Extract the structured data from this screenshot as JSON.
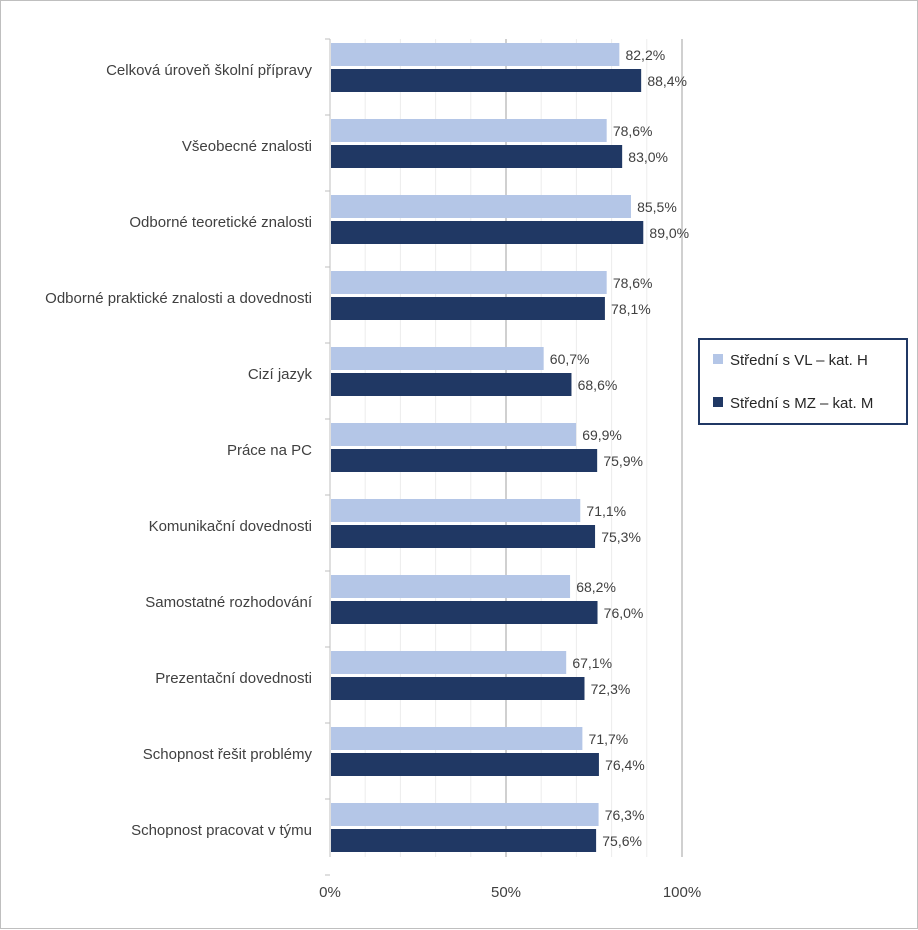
{
  "chart_data": {
    "type": "bar",
    "orientation": "horizontal",
    "title": "",
    "xlabel": "",
    "ylabel": "",
    "categories": [
      "Celková úroveň školní přípravy",
      "Všeobecné znalosti",
      "Odborné teoretické znalosti",
      "Odborné praktické znalosti a dovednosti",
      "Cizí jazyk",
      "Práce na PC",
      "Komunikační dovednosti",
      "Samostatné rozhodování",
      "Prezentační dovednosti",
      "Schopnost řešit problémy",
      "Schopnost pracovat v týmu"
    ],
    "series": [
      {
        "name": "Střední s VL – kat. H",
        "color": "#b4c6e7",
        "values": [
          82.2,
          78.6,
          85.5,
          78.6,
          60.7,
          69.9,
          71.1,
          68.2,
          67.1,
          71.7,
          76.3
        ],
        "labels": [
          "82,2%",
          "78,6%",
          "85,5%",
          "78,6%",
          "60,7%",
          "69,9%",
          "71,1%",
          "68,2%",
          "67,1%",
          "71,7%",
          "76,3%"
        ]
      },
      {
        "name": "Střední s MZ  – kat. M",
        "color": "#203864",
        "values": [
          88.4,
          83.0,
          89.0,
          78.1,
          68.6,
          75.9,
          75.3,
          76.0,
          72.3,
          76.4,
          75.6
        ],
        "labels": [
          "88,4%",
          "83,0%",
          "89,0%",
          "78,1%",
          "68,6%",
          "75,9%",
          "75,3%",
          "76,0%",
          "72,3%",
          "76,4%",
          "75,6%"
        ]
      }
    ],
    "xlim": [
      0,
      100
    ],
    "ticks": [
      {
        "value": 0,
        "label": "0%"
      },
      {
        "value": 50,
        "label": "50%"
      },
      {
        "value": 100,
        "label": "100%"
      }
    ],
    "grid": true,
    "legend": "right"
  }
}
